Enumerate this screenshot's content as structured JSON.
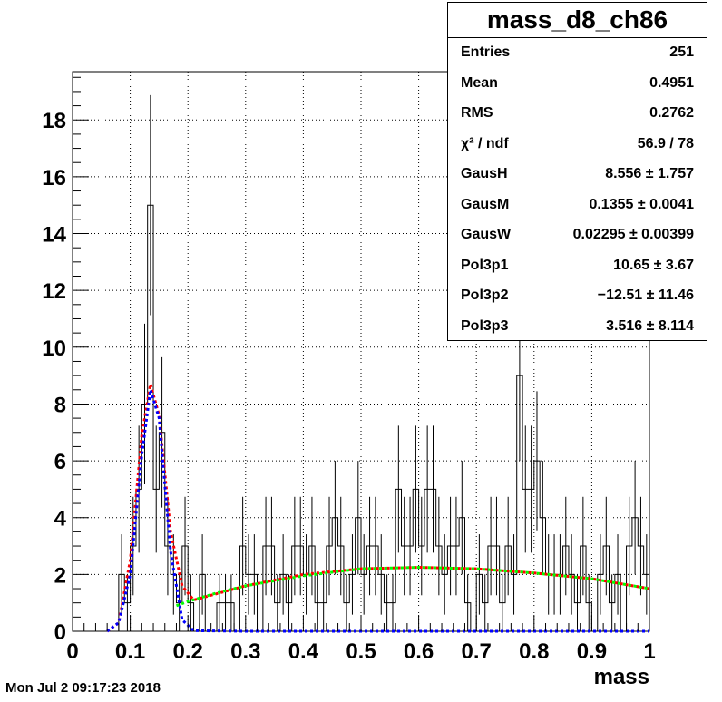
{
  "stats": {
    "title": "mass_d8_ch86",
    "rows": [
      {
        "label": "Entries",
        "value": "251"
      },
      {
        "label": "Mean",
        "value": "0.4951"
      },
      {
        "label": "RMS",
        "value": "0.2762"
      },
      {
        "label": "χ² / ndf",
        "value": "56.9 / 78"
      },
      {
        "label": "GausH",
        "value": "8.556 ± 1.757"
      },
      {
        "label": "GausM",
        "value": "0.1355 ± 0.0041"
      },
      {
        "label": "GausW",
        "value": "0.02295 ± 0.00399"
      },
      {
        "label": "Pol3p1",
        "value": "10.65 ± 3.67"
      },
      {
        "label": "Pol3p2",
        "value": "−12.51 ± 11.46"
      },
      {
        "label": "Pol3p3",
        "value": "3.516 ± 8.114"
      }
    ]
  },
  "footer": {
    "timestamp": "Mon Jul  2 09:17:23 2018"
  },
  "colors": {
    "total_fit": "#ff0000",
    "signal_fit": "#0000ff",
    "background_fit": "#00ff00"
  },
  "chart_data": {
    "type": "histogram",
    "xlabel": "mass",
    "ylabel": "",
    "xlim": [
      0,
      1
    ],
    "ylim": [
      0,
      19.7
    ],
    "grid": true,
    "x_ticks": [
      "0",
      "0.1",
      "0.2",
      "0.3",
      "0.4",
      "0.5",
      "0.6",
      "0.7",
      "0.8",
      "0.9",
      "1"
    ],
    "y_ticks": [
      "0",
      "2",
      "4",
      "6",
      "8",
      "10",
      "12",
      "14",
      "16",
      "18"
    ],
    "bins": {
      "low": 0,
      "width": 0.01,
      "values": [
        0,
        0,
        0,
        0,
        0,
        0,
        0,
        0,
        2,
        1,
        3,
        5,
        8,
        15,
        5,
        7,
        3,
        2,
        1,
        3,
        1,
        0,
        2,
        0,
        0,
        1,
        1,
        1,
        0,
        3,
        2,
        2,
        0,
        3,
        3,
        1,
        2,
        1,
        3,
        3,
        2,
        3,
        1,
        1,
        3,
        4,
        3,
        1,
        2,
        4,
        2,
        3,
        3,
        2,
        1,
        1,
        5,
        3,
        3,
        5,
        3,
        5,
        5,
        3,
        2,
        3,
        3,
        4,
        1,
        0,
        2,
        1,
        3,
        3,
        1,
        3,
        2,
        9,
        5,
        5,
        6,
        4,
        2,
        2,
        2,
        3,
        2,
        1,
        3,
        1,
        0,
        2,
        3,
        1,
        2,
        0,
        3,
        4,
        3,
        2
      ]
    },
    "series": [
      {
        "name": "total fit",
        "style": "dotted",
        "color": "#ff0000",
        "x": [
          0.06,
          0.08,
          0.1,
          0.12,
          0.135,
          0.15,
          0.17,
          0.19,
          0.21,
          0.3,
          0.4,
          0.5,
          0.6,
          0.7,
          0.8,
          0.9,
          1.0
        ],
        "y": [
          0,
          0.3,
          2.5,
          6.9,
          8.7,
          7.6,
          3.5,
          1.6,
          1.1,
          1.6,
          2.0,
          2.2,
          2.25,
          2.2,
          2.05,
          1.85,
          1.5
        ]
      },
      {
        "name": "signal",
        "style": "dotted",
        "color": "#0000ff",
        "x": [
          0.06,
          0.08,
          0.1,
          0.12,
          0.135,
          0.15,
          0.17,
          0.19,
          0.21,
          0.3,
          1.0
        ],
        "y": [
          0,
          0.3,
          2.0,
          6.2,
          8.5,
          7.5,
          2.8,
          0.4,
          0.02,
          0,
          0
        ]
      },
      {
        "name": "background",
        "style": "dotted",
        "color": "#00ff00",
        "x": [
          0.18,
          0.2,
          0.25,
          0.3,
          0.4,
          0.5,
          0.6,
          0.7,
          0.8,
          0.9,
          1.0
        ],
        "y": [
          0.9,
          1.05,
          1.35,
          1.6,
          1.95,
          2.2,
          2.25,
          2.2,
          2.05,
          1.85,
          1.5
        ]
      }
    ]
  }
}
